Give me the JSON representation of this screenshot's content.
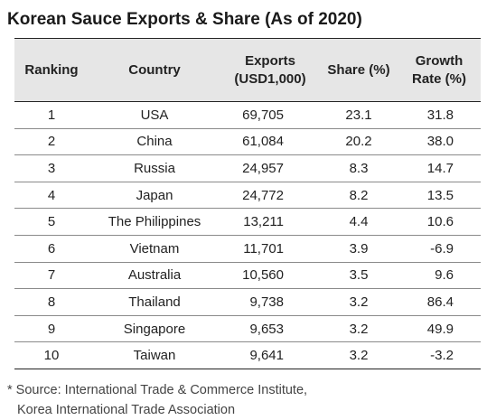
{
  "title": "Korean Sauce Exports & Share (As of 2020)",
  "chart_data": {
    "type": "table",
    "title": "Korean Sauce Exports & Share (As of 2020)",
    "columns": [
      "Ranking",
      "Country",
      "Exports (USD1,000)",
      "Share (%)",
      "Growth Rate (%)"
    ],
    "header": {
      "ranking": "Ranking",
      "country": "Country",
      "exports_l1": "Exports",
      "exports_l2": "(USD1,000)",
      "share": "Share (%)",
      "growth_l1": "Growth",
      "growth_l2": "Rate (%)"
    },
    "rows": [
      {
        "rank": "1",
        "country": "USA",
        "exports": "69,705",
        "share": "23.1",
        "growth": "31.8"
      },
      {
        "rank": "2",
        "country": "China",
        "exports": "61,084",
        "share": "20.2",
        "growth": "38.0"
      },
      {
        "rank": "3",
        "country": "Russia",
        "exports": "24,957",
        "share": "8.3",
        "growth": "14.7"
      },
      {
        "rank": "4",
        "country": "Japan",
        "exports": "24,772",
        "share": "8.2",
        "growth": "13.5"
      },
      {
        "rank": "5",
        "country": "The Philippines",
        "exports": "13,211",
        "share": "4.4",
        "growth": "10.6"
      },
      {
        "rank": "6",
        "country": "Vietnam",
        "exports": "11,701",
        "share": "3.9",
        "growth": "-6.9"
      },
      {
        "rank": "7",
        "country": "Australia",
        "exports": "10,560",
        "share": "3.5",
        "growth": "9.6"
      },
      {
        "rank": "8",
        "country": "Thailand",
        "exports": "9,738",
        "share": "3.2",
        "growth": "86.4"
      },
      {
        "rank": "9",
        "country": "Singapore",
        "exports": "9,653",
        "share": "3.2",
        "growth": "49.9"
      },
      {
        "rank": "10",
        "country": "Taiwan",
        "exports": "9,641",
        "share": "3.2",
        "growth": "-3.2"
      }
    ]
  },
  "source": {
    "line1": "* Source: International Trade & Commerce Institute,",
    "line2": "Korea International Trade Association"
  },
  "colors": {
    "header_bg": "#e6e6e6",
    "rule_dark": "#222222",
    "rule_light": "#8a8a8a"
  }
}
